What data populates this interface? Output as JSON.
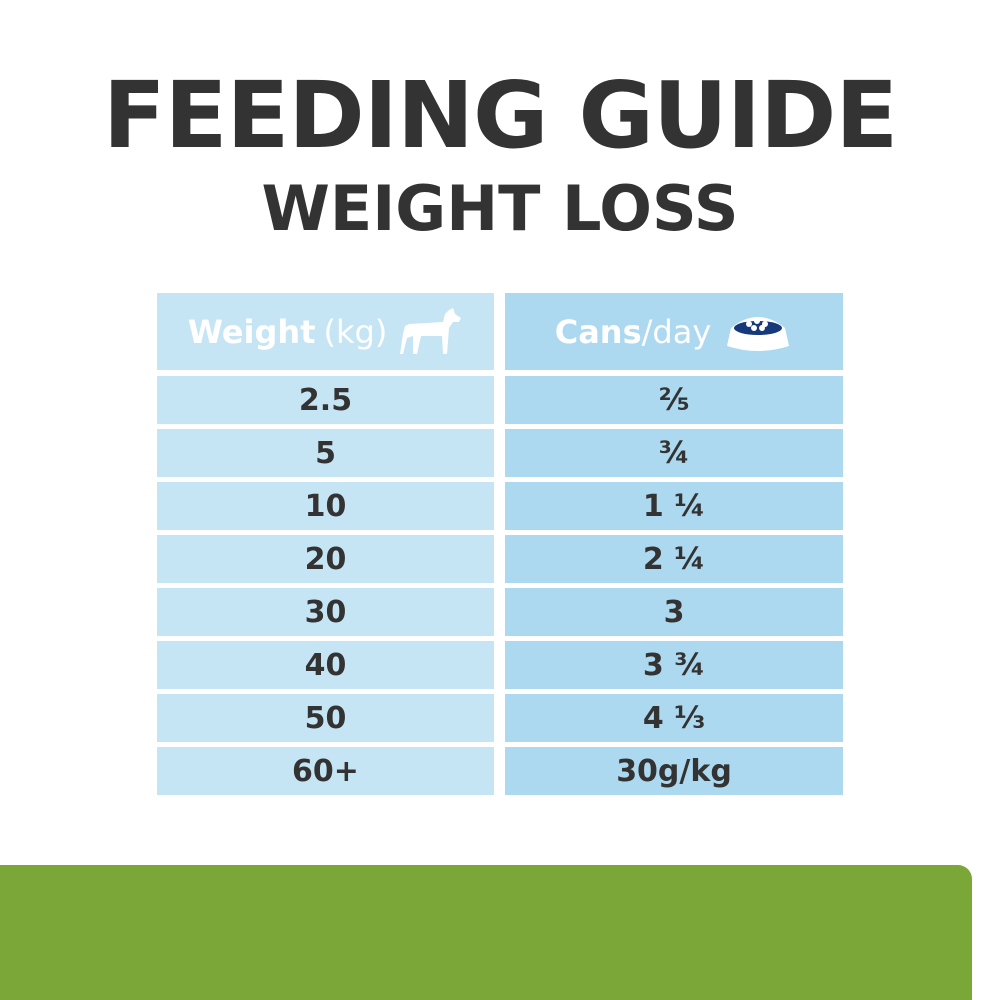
{
  "header": {
    "title": "FEEDING GUIDE",
    "subtitle": "WEIGHT LOSS"
  },
  "table": {
    "columns": [
      {
        "label": "Weight",
        "unit": "(kg)"
      },
      {
        "label": "Cans",
        "unit": "/day"
      }
    ],
    "rows": [
      [
        "2.5",
        "⅖"
      ],
      [
        "5",
        "¾"
      ],
      [
        "10",
        "1 ¼"
      ],
      [
        "20",
        "2 ¼"
      ],
      [
        "30",
        "3"
      ],
      [
        "40",
        "3 ¾"
      ],
      [
        "50",
        "4 ⅓"
      ],
      [
        "60+",
        "30g/kg"
      ]
    ]
  }
}
